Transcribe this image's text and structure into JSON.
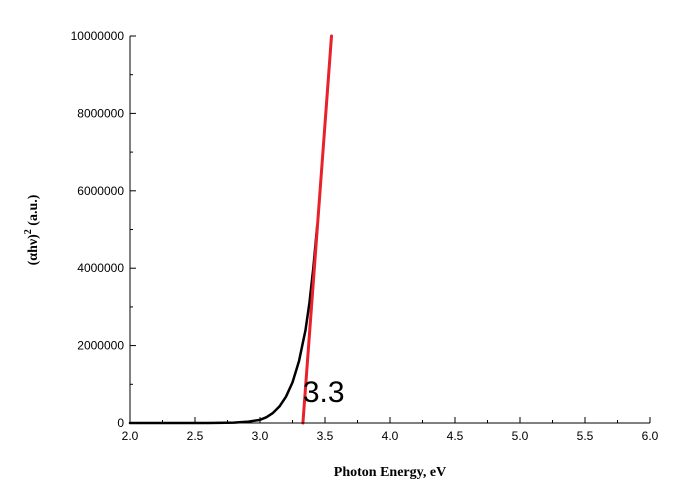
{
  "chart_data": {
    "type": "line",
    "title": "",
    "xlabel": "Photon Energy, eV",
    "ylabel_main": "(αhν)",
    "ylabel_sup": "2",
    "ylabel_rest": " (a.u.)",
    "xlim": [
      2.0,
      6.0
    ],
    "ylim": [
      0,
      10000000
    ],
    "x_ticks": [
      2.0,
      2.5,
      3.0,
      3.5,
      4.0,
      4.5,
      5.0,
      5.5,
      6.0
    ],
    "x_tick_labels": [
      "2.0",
      "2.5",
      "3.0",
      "3.5",
      "4.0",
      "4.5",
      "5.0",
      "5.5",
      "6.0"
    ],
    "y_ticks": [
      0,
      2000000,
      4000000,
      6000000,
      8000000,
      10000000
    ],
    "y_tick_labels": [
      "0",
      "2000000",
      "4000000",
      "6000000",
      "8000000",
      "10000000"
    ],
    "grid": false,
    "series": [
      {
        "color": "#000000",
        "x": [
          2.0,
          2.6,
          2.8,
          2.9,
          3.0,
          3.05,
          3.1,
          3.15,
          3.2,
          3.25,
          3.3,
          3.35,
          3.38,
          3.41,
          3.44
        ],
        "y": [
          0,
          0,
          10000,
          30000,
          80000,
          150000,
          260000,
          430000,
          680000,
          1050000,
          1600000,
          2400000,
          3100000,
          4000000,
          5100000
        ]
      },
      {
        "color": "#e8212b",
        "x": [
          3.33,
          3.55
        ],
        "y": [
          0,
          10000000
        ]
      }
    ],
    "annotations": [
      {
        "text": "3.3",
        "x": 3.49,
        "y": 800000
      }
    ]
  }
}
